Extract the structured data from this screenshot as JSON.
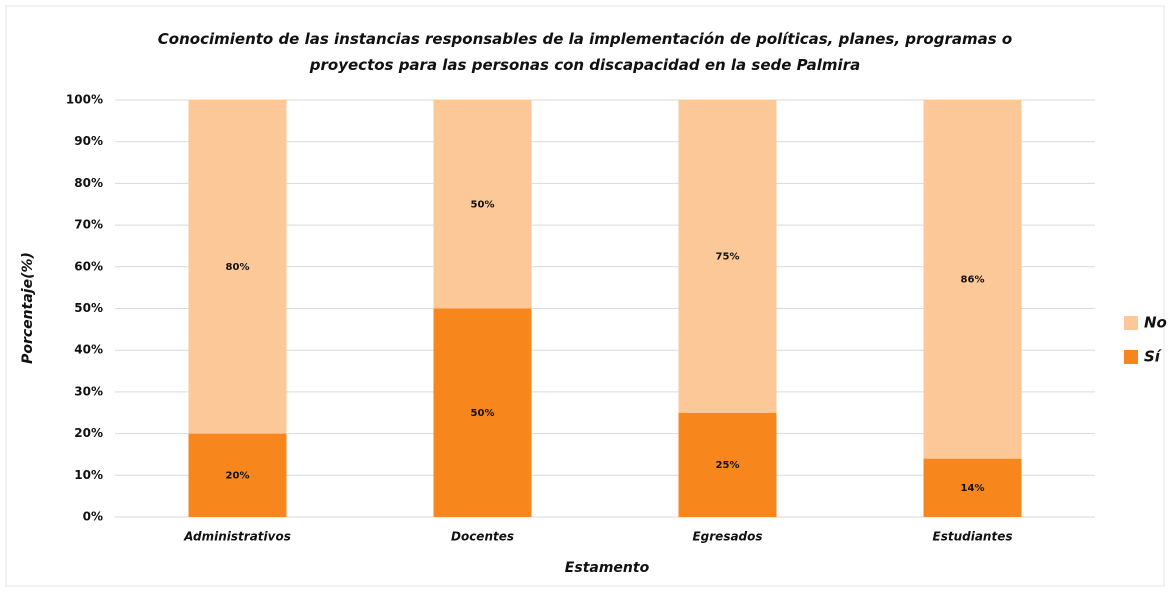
{
  "chart_data": {
    "type": "stacked_bar",
    "title": "Conocimiento de las instancias responsables de la implementación de políticas, planes, programas o proyectos para las personas con discapacidad en la sede Palmira",
    "x_label": "Estamento",
    "y_label": "Porcentaje(%)",
    "categories": [
      "Administrativos",
      "Docentes",
      "Egresados",
      "Estudiantes"
    ],
    "series": [
      {
        "name": "Sí",
        "color": "#f7861c",
        "values": [
          20,
          50,
          25,
          14
        ],
        "value_labels": [
          "20%",
          "50%",
          "25%",
          "14%"
        ]
      },
      {
        "name": "No",
        "color": "#fdc897",
        "values": [
          80,
          50,
          75,
          86
        ],
        "value_labels": [
          "80%",
          "50%",
          "75%",
          "86%"
        ]
      }
    ],
    "ylim": [
      0,
      100
    ],
    "yticks": [
      {
        "value": 0,
        "label": "0%"
      },
      {
        "value": 10,
        "label": "10%"
      },
      {
        "value": 20,
        "label": "20%"
      },
      {
        "value": 30,
        "label": "30%"
      },
      {
        "value": 40,
        "label": "40%"
      },
      {
        "value": 50,
        "label": "50%"
      },
      {
        "value": 60,
        "label": "60%"
      },
      {
        "value": 70,
        "label": "70%"
      },
      {
        "value": 80,
        "label": "80%"
      },
      {
        "value": 90,
        "label": "90%"
      },
      {
        "value": 100,
        "label": "100%"
      }
    ],
    "grid": true,
    "legend": "right"
  }
}
